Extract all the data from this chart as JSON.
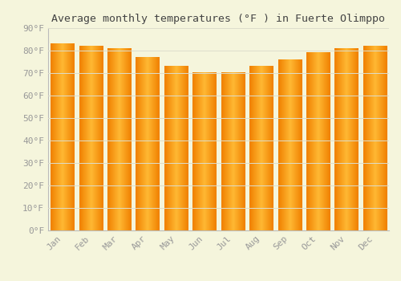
{
  "title": "Average monthly temperatures (°F ) in Fuerte Olimppo",
  "months": [
    "Jan",
    "Feb",
    "Mar",
    "Apr",
    "May",
    "Jun",
    "Jul",
    "Aug",
    "Sep",
    "Oct",
    "Nov",
    "Dec"
  ],
  "values": [
    83,
    82,
    81,
    77,
    73,
    70,
    70,
    73,
    76,
    79,
    81,
    82
  ],
  "bar_color_center": "#FFB833",
  "bar_color_edge": "#F08000",
  "background_color": "#F5F5DC",
  "grid_color": "#DDDDCC",
  "ylim": [
    0,
    90
  ],
  "yticks": [
    0,
    10,
    20,
    30,
    40,
    50,
    60,
    70,
    80,
    90
  ],
  "ytick_labels": [
    "0°F",
    "10°F",
    "20°F",
    "30°F",
    "40°F",
    "50°F",
    "60°F",
    "70°F",
    "80°F",
    "90°F"
  ],
  "title_fontsize": 9.5,
  "tick_fontsize": 8,
  "font_family": "monospace",
  "bar_width": 0.82
}
